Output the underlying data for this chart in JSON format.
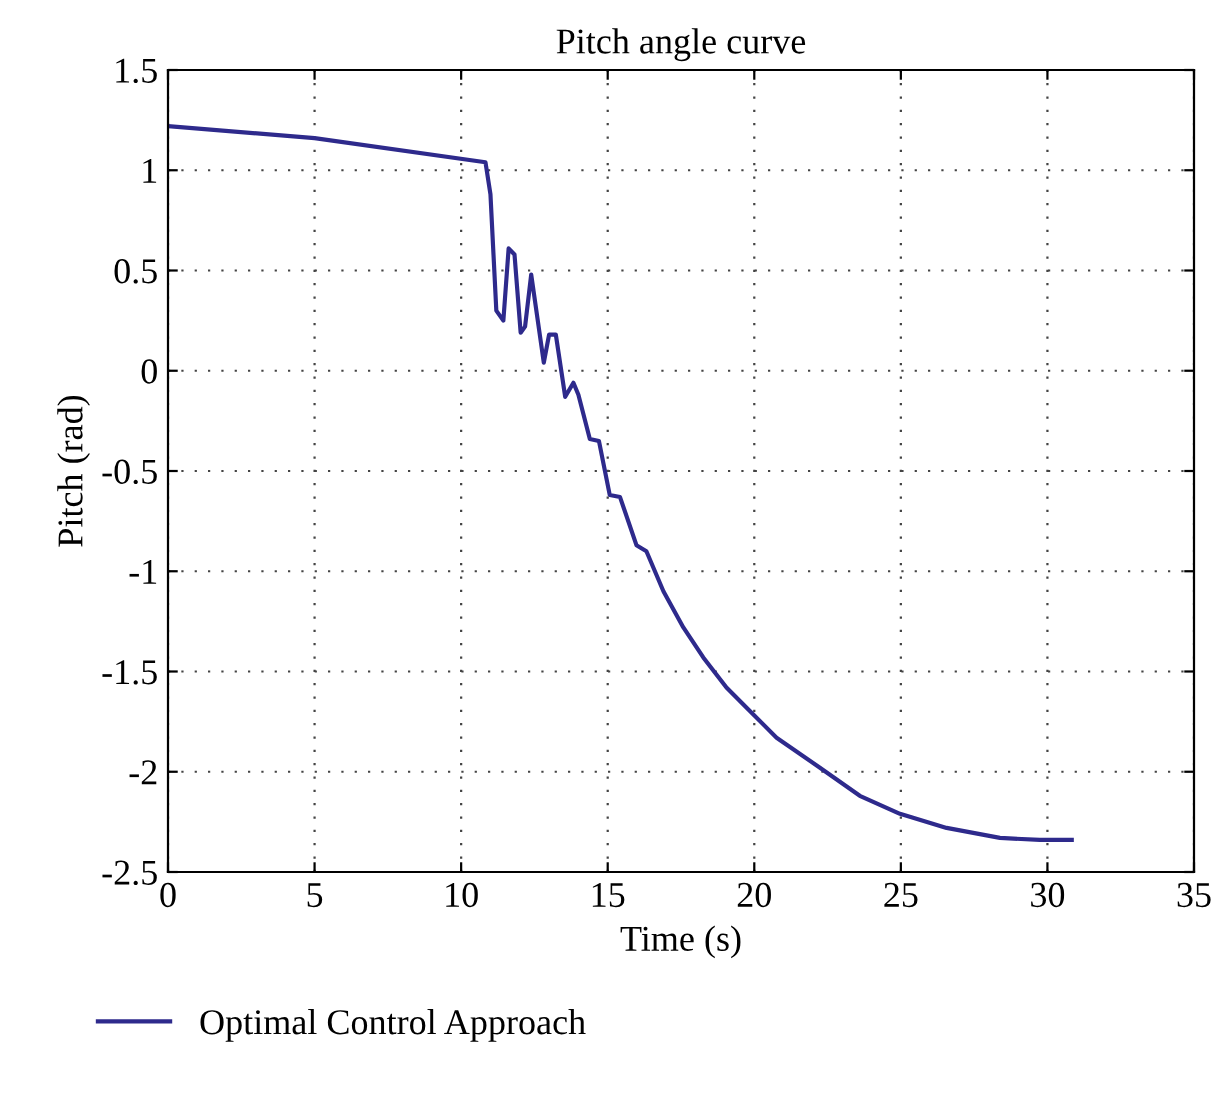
{
  "chart_data": {
    "type": "line",
    "title": "Pitch angle curve",
    "xlabel": "Time (s)",
    "ylabel": "Pitch (rad)",
    "xlim": [
      0,
      35
    ],
    "xticks": [
      0,
      5,
      10,
      15,
      20,
      25,
      30,
      35
    ],
    "ylim": [
      -2.5,
      1.5
    ],
    "yticks": [
      -2.5,
      -2,
      -1.5,
      -1,
      -0.5,
      0,
      0.5,
      1,
      1.5
    ],
    "grid": true,
    "legend": "bottom",
    "line_style": "solid",
    "marker": "none",
    "series": [
      {
        "name": "Optimal Control Approach",
        "color": "#2e2a8c",
        "x": [
          0,
          5,
          10.83,
          11.0,
          11.2,
          11.44,
          11.62,
          11.82,
          12.03,
          12.18,
          12.39,
          12.82,
          13.0,
          13.23,
          13.55,
          13.83,
          14.0,
          14.39,
          14.7,
          15.07,
          15.42,
          15.98,
          16.32,
          16.9,
          17.58,
          18.26,
          19.05,
          19.73,
          20.76,
          22.24,
          23.6,
          24.97,
          26.56,
          28.38,
          29.74,
          30.83
        ],
        "values": [
          1.22,
          1.16,
          1.04,
          0.88,
          0.3,
          0.25,
          0.61,
          0.58,
          0.19,
          0.22,
          0.48,
          0.04,
          0.18,
          0.18,
          -0.13,
          -0.06,
          -0.12,
          -0.34,
          -0.35,
          -0.62,
          -0.63,
          -0.87,
          -0.9,
          -1.1,
          -1.28,
          -1.43,
          -1.58,
          -1.68,
          -1.83,
          -1.98,
          -2.12,
          -2.21,
          -2.28,
          -2.33,
          -2.34,
          -2.34
        ]
      }
    ]
  }
}
